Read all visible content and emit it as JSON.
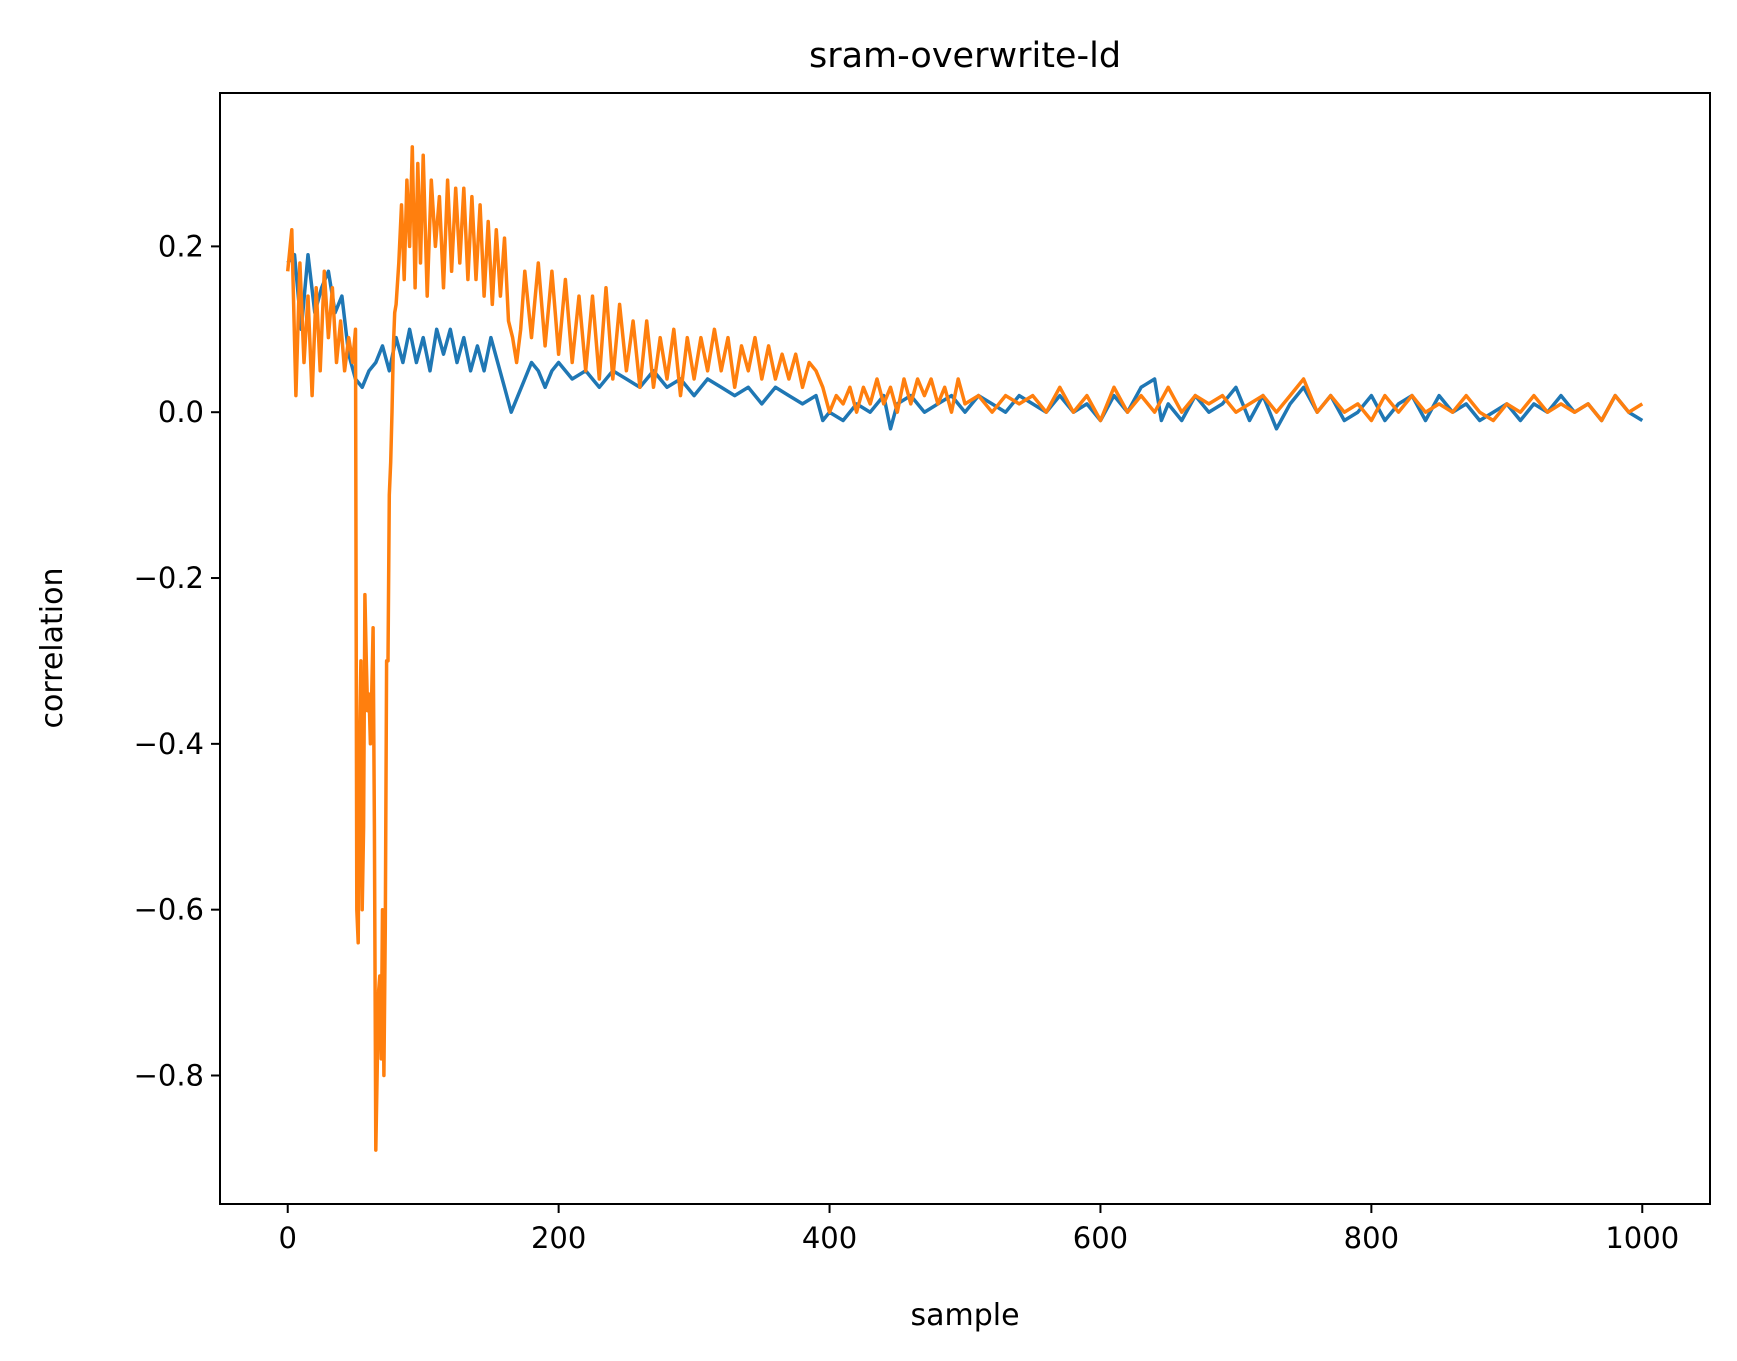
{
  "chart_data": {
    "type": "line",
    "title": "sram-overwrite-ld",
    "xlabel": "sample",
    "ylabel": "correlation",
    "xlim": [
      -50,
      1050
    ],
    "ylim": [
      -0.955,
      0.385
    ],
    "xticks": [
      0,
      200,
      400,
      600,
      800,
      1000
    ],
    "xtick_labels": [
      "0",
      "200",
      "400",
      "600",
      "800",
      "1000"
    ],
    "yticks": [
      0.2,
      0.0,
      -0.2,
      -0.4,
      -0.6,
      -0.8
    ],
    "ytick_labels": [
      "0.2",
      "0.0",
      "−0.2",
      "−0.4",
      "−0.6",
      "−0.8"
    ],
    "grid": false,
    "legend": "none",
    "series": [
      {
        "color": "#1f77b4",
        "points": [
          [
            0,
            0.18
          ],
          [
            5,
            0.19
          ],
          [
            10,
            0.1
          ],
          [
            15,
            0.19
          ],
          [
            20,
            0.12
          ],
          [
            25,
            0.15
          ],
          [
            30,
            0.17
          ],
          [
            35,
            0.12
          ],
          [
            40,
            0.14
          ],
          [
            45,
            0.07
          ],
          [
            50,
            0.04
          ],
          [
            55,
            0.03
          ],
          [
            60,
            0.05
          ],
          [
            65,
            0.06
          ],
          [
            70,
            0.08
          ],
          [
            75,
            0.05
          ],
          [
            80,
            0.09
          ],
          [
            85,
            0.06
          ],
          [
            90,
            0.1
          ],
          [
            95,
            0.06
          ],
          [
            100,
            0.09
          ],
          [
            105,
            0.05
          ],
          [
            110,
            0.1
          ],
          [
            115,
            0.07
          ],
          [
            120,
            0.1
          ],
          [
            125,
            0.06
          ],
          [
            130,
            0.09
          ],
          [
            135,
            0.05
          ],
          [
            140,
            0.08
          ],
          [
            145,
            0.05
          ],
          [
            150,
            0.09
          ],
          [
            155,
            0.06
          ],
          [
            160,
            0.03
          ],
          [
            165,
            0.0
          ],
          [
            170,
            0.02
          ],
          [
            175,
            0.04
          ],
          [
            180,
            0.06
          ],
          [
            185,
            0.05
          ],
          [
            190,
            0.03
          ],
          [
            195,
            0.05
          ],
          [
            200,
            0.06
          ],
          [
            210,
            0.04
          ],
          [
            220,
            0.05
          ],
          [
            230,
            0.03
          ],
          [
            240,
            0.05
          ],
          [
            250,
            0.04
          ],
          [
            260,
            0.03
          ],
          [
            270,
            0.05
          ],
          [
            280,
            0.03
          ],
          [
            290,
            0.04
          ],
          [
            300,
            0.02
          ],
          [
            310,
            0.04
          ],
          [
            320,
            0.03
          ],
          [
            330,
            0.02
          ],
          [
            340,
            0.03
          ],
          [
            350,
            0.01
          ],
          [
            360,
            0.03
          ],
          [
            370,
            0.02
          ],
          [
            380,
            0.01
          ],
          [
            390,
            0.02
          ],
          [
            395,
            -0.01
          ],
          [
            400,
            0.0
          ],
          [
            410,
            -0.01
          ],
          [
            420,
            0.01
          ],
          [
            430,
            0.0
          ],
          [
            440,
            0.02
          ],
          [
            445,
            -0.02
          ],
          [
            450,
            0.01
          ],
          [
            460,
            0.02
          ],
          [
            470,
            0.0
          ],
          [
            480,
            0.01
          ],
          [
            490,
            0.02
          ],
          [
            500,
            0.0
          ],
          [
            510,
            0.02
          ],
          [
            520,
            0.01
          ],
          [
            530,
            0.0
          ],
          [
            540,
            0.02
          ],
          [
            550,
            0.01
          ],
          [
            560,
            0.0
          ],
          [
            570,
            0.02
          ],
          [
            580,
            0.0
          ],
          [
            590,
            0.01
          ],
          [
            600,
            -0.01
          ],
          [
            610,
            0.02
          ],
          [
            620,
            0.0
          ],
          [
            630,
            0.03
          ],
          [
            640,
            0.04
          ],
          [
            645,
            -0.01
          ],
          [
            650,
            0.01
          ],
          [
            660,
            -0.01
          ],
          [
            670,
            0.02
          ],
          [
            680,
            0.0
          ],
          [
            690,
            0.01
          ],
          [
            700,
            0.03
          ],
          [
            710,
            -0.01
          ],
          [
            720,
            0.02
          ],
          [
            730,
            -0.02
          ],
          [
            740,
            0.01
          ],
          [
            750,
            0.03
          ],
          [
            760,
            0.0
          ],
          [
            770,
            0.02
          ],
          [
            780,
            -0.01
          ],
          [
            790,
            0.0
          ],
          [
            800,
            0.02
          ],
          [
            810,
            -0.01
          ],
          [
            820,
            0.01
          ],
          [
            830,
            0.02
          ],
          [
            840,
            -0.01
          ],
          [
            850,
            0.02
          ],
          [
            860,
            0.0
          ],
          [
            870,
            0.01
          ],
          [
            880,
            -0.01
          ],
          [
            890,
            0.0
          ],
          [
            900,
            0.01
          ],
          [
            910,
            -0.01
          ],
          [
            920,
            0.01
          ],
          [
            930,
            0.0
          ],
          [
            940,
            0.02
          ],
          [
            950,
            0.0
          ],
          [
            960,
            0.01
          ],
          [
            970,
            -0.01
          ],
          [
            980,
            0.02
          ],
          [
            990,
            0.0
          ],
          [
            1000,
            -0.01
          ]
        ]
      },
      {
        "color": "#ff7f0e",
        "points": [
          [
            0,
            0.17
          ],
          [
            3,
            0.22
          ],
          [
            6,
            0.02
          ],
          [
            9,
            0.18
          ],
          [
            12,
            0.06
          ],
          [
            15,
            0.14
          ],
          [
            18,
            0.02
          ],
          [
            21,
            0.15
          ],
          [
            24,
            0.05
          ],
          [
            27,
            0.17
          ],
          [
            30,
            0.09
          ],
          [
            33,
            0.15
          ],
          [
            36,
            0.06
          ],
          [
            39,
            0.11
          ],
          [
            42,
            0.05
          ],
          [
            45,
            0.09
          ],
          [
            48,
            0.06
          ],
          [
            50,
            0.1
          ],
          [
            51,
            -0.6
          ],
          [
            52,
            -0.64
          ],
          [
            53,
            -0.4
          ],
          [
            54,
            -0.3
          ],
          [
            55,
            -0.6
          ],
          [
            56,
            -0.5
          ],
          [
            57,
            -0.22
          ],
          [
            58,
            -0.3
          ],
          [
            59,
            -0.36
          ],
          [
            60,
            -0.34
          ],
          [
            61,
            -0.4
          ],
          [
            62,
            -0.34
          ],
          [
            63,
            -0.26
          ],
          [
            64,
            -0.5
          ],
          [
            65,
            -0.89
          ],
          [
            66,
            -0.8
          ],
          [
            67,
            -0.7
          ],
          [
            68,
            -0.68
          ],
          [
            69,
            -0.78
          ],
          [
            70,
            -0.6
          ],
          [
            71,
            -0.8
          ],
          [
            72,
            -0.62
          ],
          [
            73,
            -0.3
          ],
          [
            74,
            -0.3
          ],
          [
            75,
            -0.1
          ],
          [
            76,
            -0.06
          ],
          [
            77,
            0.0
          ],
          [
            78,
            0.08
          ],
          [
            79,
            0.12
          ],
          [
            80,
            0.13
          ],
          [
            82,
            0.18
          ],
          [
            84,
            0.25
          ],
          [
            86,
            0.16
          ],
          [
            88,
            0.28
          ],
          [
            90,
            0.2
          ],
          [
            92,
            0.32
          ],
          [
            94,
            0.15
          ],
          [
            96,
            0.3
          ],
          [
            98,
            0.18
          ],
          [
            100,
            0.31
          ],
          [
            103,
            0.14
          ],
          [
            106,
            0.28
          ],
          [
            109,
            0.2
          ],
          [
            112,
            0.26
          ],
          [
            115,
            0.15
          ],
          [
            118,
            0.28
          ],
          [
            121,
            0.17
          ],
          [
            124,
            0.27
          ],
          [
            127,
            0.18
          ],
          [
            130,
            0.27
          ],
          [
            133,
            0.16
          ],
          [
            136,
            0.26
          ],
          [
            139,
            0.16
          ],
          [
            142,
            0.25
          ],
          [
            145,
            0.14
          ],
          [
            148,
            0.23
          ],
          [
            151,
            0.13
          ],
          [
            154,
            0.22
          ],
          [
            157,
            0.14
          ],
          [
            160,
            0.21
          ],
          [
            163,
            0.11
          ],
          [
            166,
            0.09
          ],
          [
            169,
            0.06
          ],
          [
            172,
            0.1
          ],
          [
            175,
            0.17
          ],
          [
            180,
            0.09
          ],
          [
            185,
            0.18
          ],
          [
            190,
            0.08
          ],
          [
            195,
            0.17
          ],
          [
            200,
            0.07
          ],
          [
            205,
            0.16
          ],
          [
            210,
            0.06
          ],
          [
            215,
            0.14
          ],
          [
            220,
            0.05
          ],
          [
            225,
            0.14
          ],
          [
            230,
            0.04
          ],
          [
            235,
            0.15
          ],
          [
            240,
            0.04
          ],
          [
            245,
            0.13
          ],
          [
            250,
            0.05
          ],
          [
            255,
            0.11
          ],
          [
            260,
            0.03
          ],
          [
            265,
            0.11
          ],
          [
            270,
            0.03
          ],
          [
            275,
            0.09
          ],
          [
            280,
            0.04
          ],
          [
            285,
            0.1
          ],
          [
            290,
            0.02
          ],
          [
            295,
            0.09
          ],
          [
            300,
            0.04
          ],
          [
            305,
            0.09
          ],
          [
            310,
            0.05
          ],
          [
            315,
            0.1
          ],
          [
            320,
            0.05
          ],
          [
            325,
            0.09
          ],
          [
            330,
            0.03
          ],
          [
            335,
            0.08
          ],
          [
            340,
            0.05
          ],
          [
            345,
            0.09
          ],
          [
            350,
            0.04
          ],
          [
            355,
            0.08
          ],
          [
            360,
            0.04
          ],
          [
            365,
            0.07
          ],
          [
            370,
            0.04
          ],
          [
            375,
            0.07
          ],
          [
            380,
            0.03
          ],
          [
            385,
            0.06
          ],
          [
            390,
            0.05
          ],
          [
            395,
            0.03
          ],
          [
            400,
            0.0
          ],
          [
            405,
            0.02
          ],
          [
            410,
            0.01
          ],
          [
            415,
            0.03
          ],
          [
            420,
            0.0
          ],
          [
            425,
            0.03
          ],
          [
            430,
            0.01
          ],
          [
            435,
            0.04
          ],
          [
            440,
            0.01
          ],
          [
            445,
            0.03
          ],
          [
            450,
            0.0
          ],
          [
            455,
            0.04
          ],
          [
            460,
            0.01
          ],
          [
            465,
            0.04
          ],
          [
            470,
            0.02
          ],
          [
            475,
            0.04
          ],
          [
            480,
            0.01
          ],
          [
            485,
            0.03
          ],
          [
            490,
            0.0
          ],
          [
            495,
            0.04
          ],
          [
            500,
            0.01
          ],
          [
            510,
            0.02
          ],
          [
            520,
            0.0
          ],
          [
            530,
            0.02
          ],
          [
            540,
            0.01
          ],
          [
            550,
            0.02
          ],
          [
            560,
            0.0
          ],
          [
            570,
            0.03
          ],
          [
            580,
            0.0
          ],
          [
            590,
            0.02
          ],
          [
            600,
            -0.01
          ],
          [
            610,
            0.03
          ],
          [
            620,
            0.0
          ],
          [
            630,
            0.02
          ],
          [
            640,
            0.0
          ],
          [
            650,
            0.03
          ],
          [
            660,
            0.0
          ],
          [
            670,
            0.02
          ],
          [
            680,
            0.01
          ],
          [
            690,
            0.02
          ],
          [
            700,
            0.0
          ],
          [
            710,
            0.01
          ],
          [
            720,
            0.02
          ],
          [
            730,
            0.0
          ],
          [
            740,
            0.02
          ],
          [
            750,
            0.04
          ],
          [
            760,
            0.0
          ],
          [
            770,
            0.02
          ],
          [
            780,
            0.0
          ],
          [
            790,
            0.01
          ],
          [
            800,
            -0.01
          ],
          [
            810,
            0.02
          ],
          [
            820,
            0.0
          ],
          [
            830,
            0.02
          ],
          [
            840,
            0.0
          ],
          [
            850,
            0.01
          ],
          [
            860,
            0.0
          ],
          [
            870,
            0.02
          ],
          [
            880,
            0.0
          ],
          [
            890,
            -0.01
          ],
          [
            900,
            0.01
          ],
          [
            910,
            0.0
          ],
          [
            920,
            0.02
          ],
          [
            930,
            0.0
          ],
          [
            940,
            0.01
          ],
          [
            950,
            0.0
          ],
          [
            960,
            0.01
          ],
          [
            970,
            -0.01
          ],
          [
            980,
            0.02
          ],
          [
            990,
            0.0
          ],
          [
            1000,
            0.01
          ]
        ]
      }
    ]
  }
}
